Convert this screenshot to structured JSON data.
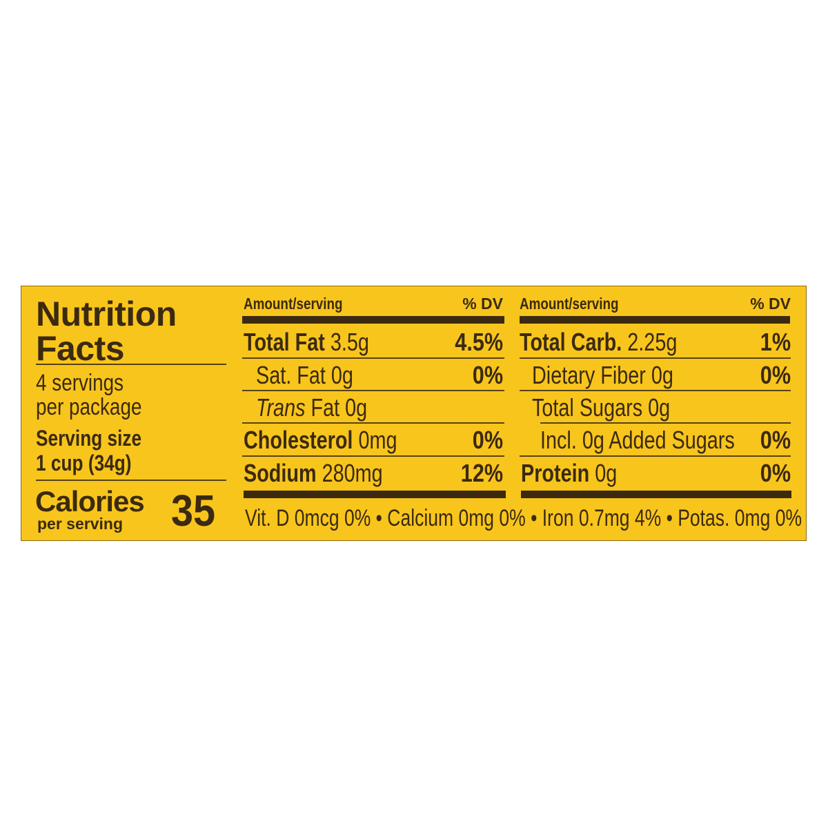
{
  "label": {
    "title_line1": "Nutrition",
    "title_line2": "Facts",
    "servings_line1": "4 servings",
    "servings_line2": "per package",
    "serving_size_label": "Serving size",
    "serving_size_value": "1 cup (34g)",
    "calories_label": "Calories",
    "calories_sub": "per serving",
    "calories_value": "35",
    "colors": {
      "background": "#f8c51d",
      "text": "#3b2a10"
    },
    "left_table": {
      "header_amount": "Amount/serving",
      "header_dv": "% DV",
      "rows": [
        {
          "name": "Total Fat",
          "amount": "3.5g",
          "dv": "4.5%"
        },
        {
          "name": "Sat. Fat",
          "amount": "0g",
          "dv": "0%"
        },
        {
          "name": "Trans",
          "name_rest": "Fat",
          "amount": "0g",
          "dv": ""
        },
        {
          "name": "Cholesterol",
          "amount": "0mg",
          "dv": "0%"
        },
        {
          "name": "Sodium",
          "amount": "280mg",
          "dv": "12%"
        }
      ]
    },
    "right_table": {
      "header_amount": "Amount/serving",
      "header_dv": "% DV",
      "rows": [
        {
          "name": "Total Carb.",
          "amount": "2.25g",
          "dv": "1%"
        },
        {
          "name": "Dietary Fiber",
          "amount": "0g",
          "dv": "0%"
        },
        {
          "name": "Total Sugars",
          "amount": "0g",
          "dv": ""
        },
        {
          "name": "Incl. 0g Added Sugars",
          "amount": "",
          "dv": "0%"
        },
        {
          "name": "Protein",
          "amount": "0g",
          "dv": "0%"
        }
      ]
    },
    "footer": "Vit. D 0mcg 0% • Calcium 0mg 0% • Iron 0.7mg 4% • Potas. 0mg 0%"
  }
}
